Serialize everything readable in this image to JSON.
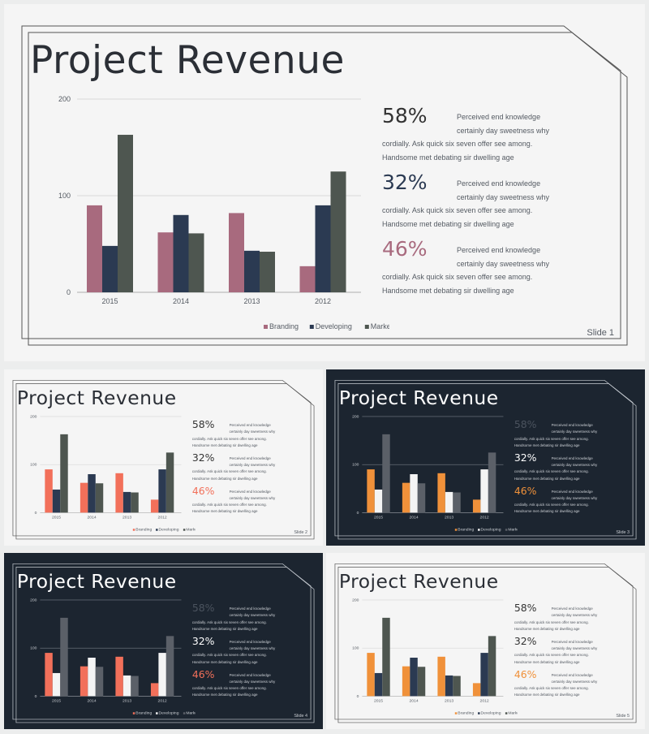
{
  "colors": {
    "light_bg": "#f5f5f5",
    "dark_bg": "#1c2530",
    "light_text": "#2b2f36",
    "dark_text": "#ffffff",
    "page_bg": "#eceded"
  },
  "chart_data": {
    "type": "bar",
    "categories": [
      "2015",
      "2014",
      "2013",
      "2012"
    ],
    "series": [
      {
        "name": "Branding",
        "values": [
          90,
          62,
          82,
          27
        ]
      },
      {
        "name": "Developing",
        "values": [
          48,
          80,
          43,
          90
        ]
      },
      {
        "name": "Marketing",
        "values": [
          163,
          61,
          42,
          125
        ]
      }
    ],
    "ylim": [
      0,
      200
    ],
    "yticks": [
      "0",
      "100",
      "200"
    ],
    "legend_position": "bottom",
    "gridlines": true
  },
  "slides": [
    {
      "theme": "light",
      "title": "Project Revenue",
      "slide_label": "Slide 1",
      "series_colors": [
        "#a86a7e",
        "#2b3a52",
        "#4e5650"
      ],
      "stat_colors": [
        "#333333",
        "#2b3a52",
        "#a86a7e"
      ],
      "stats": [
        {
          "percent": "58%",
          "text": "Perceived end knowledge certainly day sweetness why cordially. Ask quick six seven offer see among. Handsome met debating sir dwelling age"
        },
        {
          "percent": "32%",
          "text": "Perceived end knowledge certainly day sweetness why cordially. Ask quick six seven offer see among. Handsome met debating sir dwelling age"
        },
        {
          "percent": "46%",
          "text": "Perceived end knowledge certainly day sweetness why cordially. Ask quick six seven offer see among. Handsome met debating sir dwelling age"
        }
      ]
    },
    {
      "theme": "light",
      "title": "Project Revenue",
      "slide_label": "Slide 2",
      "series_colors": [
        "#f2705a",
        "#2b3a52",
        "#4e5650"
      ],
      "stat_colors": [
        "#333333",
        "#333333",
        "#f2705a"
      ],
      "stats": [
        {
          "percent": "58%",
          "text": "Perceived end knowledge certainly day sweetness why cordially. Ask quick six seven offer see among. Handsome met debating sir dwelling age"
        },
        {
          "percent": "32%",
          "text": "Perceived end knowledge certainly day sweetness why cordially. Ask quick six seven offer see among. Handsome met debating sir dwelling age"
        },
        {
          "percent": "46%",
          "text": "Perceived end knowledge certainly day sweetness why cordially. Ask quick six seven offer see among. Handsome met debating sir dwelling age"
        }
      ]
    },
    {
      "theme": "dark",
      "title": "Project Revenue",
      "slide_label": "Slide 3",
      "series_colors": [
        "#f0913a",
        "#f4f4f4",
        "#5b6068"
      ],
      "stat_colors": [
        "#4b535e",
        "#ffffff",
        "#f0913a"
      ],
      "stats": [
        {
          "percent": "58%",
          "text": "Perceived end knowledge certainly day sweetness why cordially. Ask quick six seven offer see among. Handsome met debating sir dwelling age"
        },
        {
          "percent": "32%",
          "text": "Perceived end knowledge certainly day sweetness why cordially. Ask quick six seven offer see among. Handsome met debating sir dwelling age"
        },
        {
          "percent": "46%",
          "text": "Perceived end knowledge certainly day sweetness why cordially. Ask quick six seven offer see among. Handsome met debating sir dwelling age"
        }
      ]
    },
    {
      "theme": "dark",
      "title": "Project Revenue",
      "slide_label": "Slide 4",
      "series_colors": [
        "#f2705a",
        "#f4f4f4",
        "#5b6068"
      ],
      "stat_colors": [
        "#4b535e",
        "#ffffff",
        "#f2705a"
      ],
      "stats": [
        {
          "percent": "58%",
          "text": "Perceived end knowledge certainly day sweetness why cordially. Ask quick six seven offer see among. Handsome met debating sir dwelling age"
        },
        {
          "percent": "32%",
          "text": "Perceived end knowledge certainly day sweetness why cordially. Ask quick six seven offer see among. Handsome met debating sir dwelling age"
        },
        {
          "percent": "46%",
          "text": "Perceived end knowledge certainly day sweetness why cordially. Ask quick six seven offer see among. Handsome met debating sir dwelling age"
        }
      ]
    },
    {
      "theme": "light",
      "title": "Project Revenue",
      "slide_label": "Slide 5",
      "series_colors": [
        "#f0913a",
        "#2b3a52",
        "#4e5650"
      ],
      "stat_colors": [
        "#333333",
        "#333333",
        "#f0913a"
      ],
      "stats": [
        {
          "percent": "58%",
          "text": "Perceived end knowledge certainly day sweetness why cordially. Ask quick six seven offer see among. Handsome met debating sir dwelling age"
        },
        {
          "percent": "32%",
          "text": "Perceived end knowledge certainly day sweetness why cordially. Ask quick six seven offer see among. Handsome met debating sir dwelling age"
        },
        {
          "percent": "46%",
          "text": "Perceived end knowledge certainly day sweetness why cordially. Ask quick six seven offer see among. Handsome met debating sir dwelling age"
        }
      ]
    }
  ]
}
